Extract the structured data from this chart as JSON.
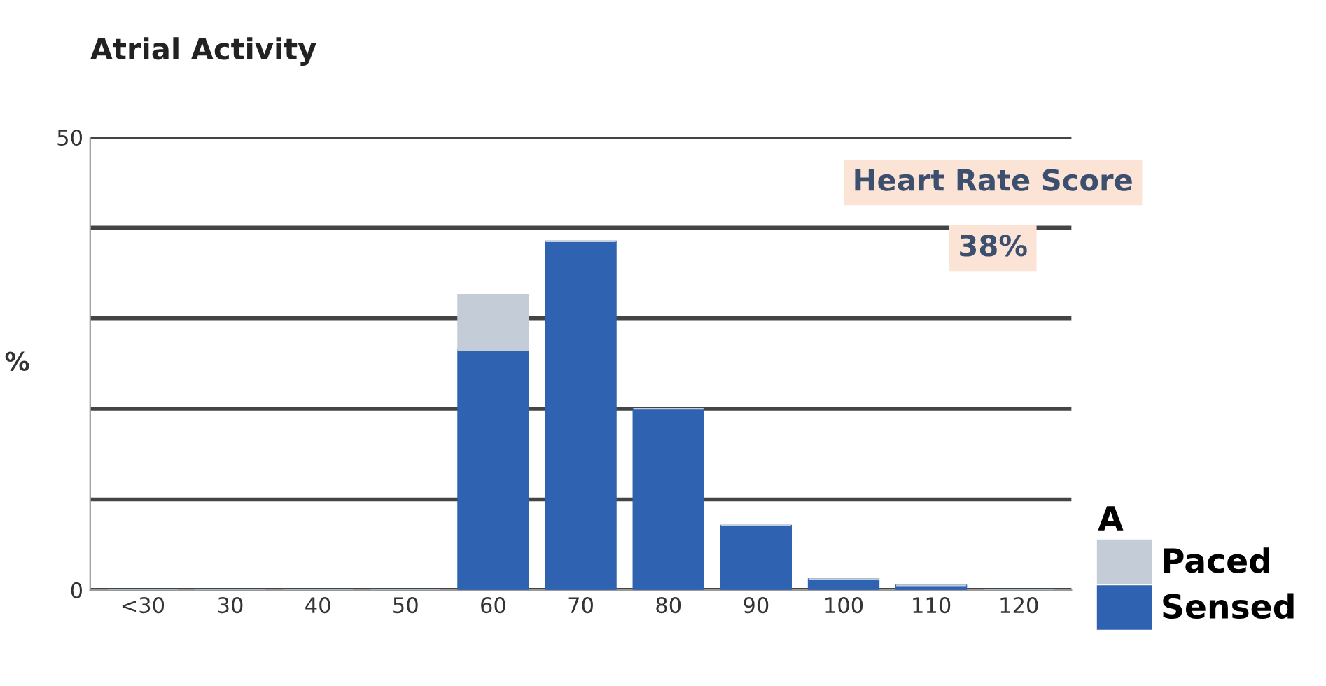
{
  "chart_data": {
    "type": "bar",
    "title": "Atrial Activity",
    "ylabel": "%",
    "categories": [
      "<30",
      "30",
      "40",
      "50",
      "60",
      "70",
      "80",
      "90",
      "100",
      "110",
      "120"
    ],
    "series": [
      {
        "name": "Sensed",
        "color": "#2f62b0",
        "values": [
          0,
          0,
          0,
          0,
          26.5,
          38.5,
          20,
          7.1,
          1.2,
          0.5,
          0
        ]
      },
      {
        "name": "Paced",
        "color": "#c4ccd8",
        "values": [
          0,
          0,
          0,
          0,
          6.1,
          0,
          0,
          0,
          0,
          0,
          0
        ]
      }
    ],
    "stacked": true,
    "ylim": [
      0,
      50
    ],
    "yticks": [
      0,
      {
        "value": 10,
        "label": null
      },
      {
        "value": 20,
        "label": null
      },
      {
        "value": 30,
        "label": null
      },
      {
        "value": 40,
        "label": null
      },
      50
    ],
    "grid": "y",
    "legend": "bottom right",
    "legend_title": "A",
    "annotations": [
      "Heart Rate Score",
      "38%"
    ]
  }
}
